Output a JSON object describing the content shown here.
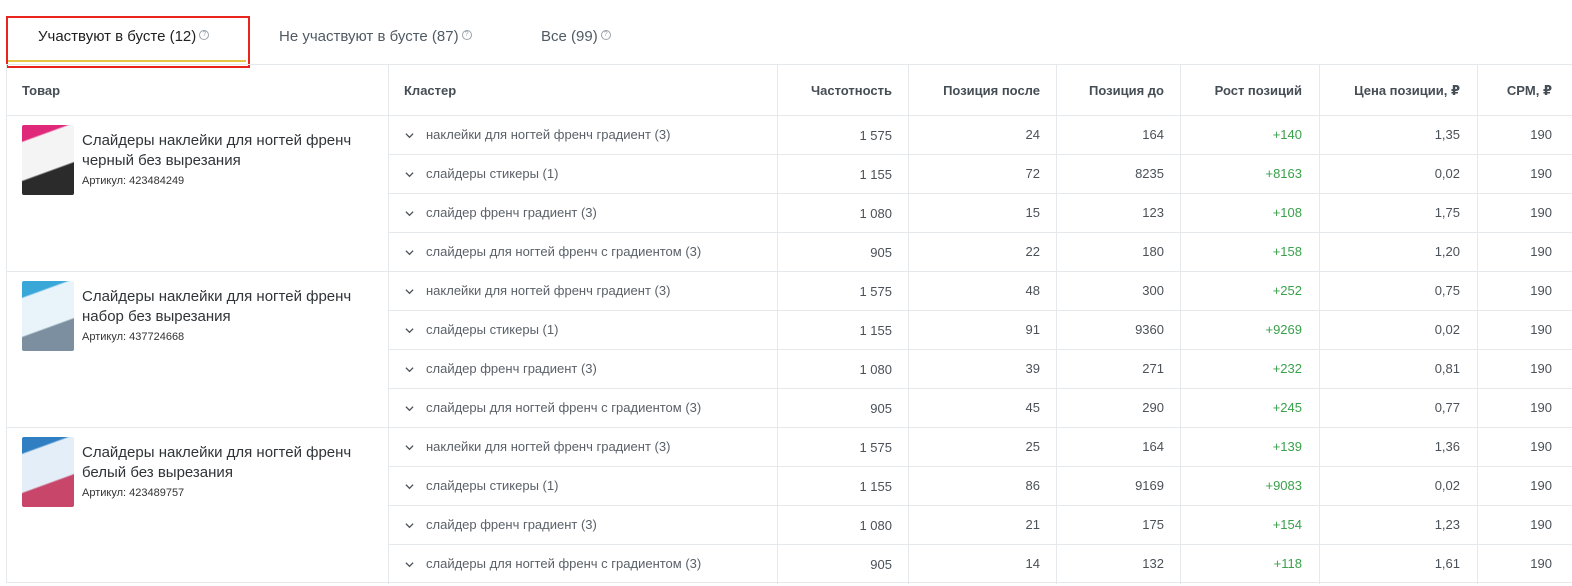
{
  "tabs": [
    {
      "label": "Участвуют в бусте (12)",
      "active": true
    },
    {
      "label": "Не участвуют в бусте (87)",
      "active": false
    },
    {
      "label": "Все (99)",
      "active": false
    }
  ],
  "help_glyph": "?",
  "columns": {
    "product": "Товар",
    "cluster": "Кластер",
    "frequency": "Частотность",
    "pos_after": "Позиция после",
    "pos_before": "Позиция до",
    "growth": "Рост позиций",
    "price": "Цена позиции, ₽",
    "cpm": "CPM, ₽"
  },
  "colors": {
    "accent_underline": "#e7c443",
    "highlight_box": "#e8241d",
    "growth_green": "#3aa14b"
  },
  "products": [
    {
      "title": "Слайдеры наклейки для ногтей френч черный без вырезания",
      "sku": "Артикул: 423484249",
      "rows": [
        {
          "cluster": "наклейки для ногтей френч градиент (3)",
          "frequency": "1 575",
          "pos_after": "24",
          "pos_before": "164",
          "growth": "+140",
          "price": "1,35",
          "cpm": "190"
        },
        {
          "cluster": "слайдеры стикеры (1)",
          "frequency": "1 155",
          "pos_after": "72",
          "pos_before": "8235",
          "growth": "+8163",
          "price": "0,02",
          "cpm": "190"
        },
        {
          "cluster": "слайдер френч градиент (3)",
          "frequency": "1 080",
          "pos_after": "15",
          "pos_before": "123",
          "growth": "+108",
          "price": "1,75",
          "cpm": "190"
        },
        {
          "cluster": "слайдеры для ногтей френч с градиентом (3)",
          "frequency": "905",
          "pos_after": "22",
          "pos_before": "180",
          "growth": "+158",
          "price": "1,20",
          "cpm": "190"
        }
      ]
    },
    {
      "title": "Слайдеры наклейки для ногтей френч набор без вырезания",
      "sku": "Артикул: 437724668",
      "rows": [
        {
          "cluster": "наклейки для ногтей френч градиент (3)",
          "frequency": "1 575",
          "pos_after": "48",
          "pos_before": "300",
          "growth": "+252",
          "price": "0,75",
          "cpm": "190"
        },
        {
          "cluster": "слайдеры стикеры (1)",
          "frequency": "1 155",
          "pos_after": "91",
          "pos_before": "9360",
          "growth": "+9269",
          "price": "0,02",
          "cpm": "190"
        },
        {
          "cluster": "слайдер френч градиент (3)",
          "frequency": "1 080",
          "pos_after": "39",
          "pos_before": "271",
          "growth": "+232",
          "price": "0,81",
          "cpm": "190"
        },
        {
          "cluster": "слайдеры для ногтей френч с градиентом (3)",
          "frequency": "905",
          "pos_after": "45",
          "pos_before": "290",
          "growth": "+245",
          "price": "0,77",
          "cpm": "190"
        }
      ]
    },
    {
      "title": "Слайдеры наклейки для ногтей френч белый без вырезания",
      "sku": "Артикул: 423489757",
      "rows": [
        {
          "cluster": "наклейки для ногтей френч градиент (3)",
          "frequency": "1 575",
          "pos_after": "25",
          "pos_before": "164",
          "growth": "+139",
          "price": "1,36",
          "cpm": "190"
        },
        {
          "cluster": "слайдеры стикеры (1)",
          "frequency": "1 155",
          "pos_after": "86",
          "pos_before": "9169",
          "growth": "+9083",
          "price": "0,02",
          "cpm": "190"
        },
        {
          "cluster": "слайдер френч градиент (3)",
          "frequency": "1 080",
          "pos_after": "21",
          "pos_before": "175",
          "growth": "+154",
          "price": "1,23",
          "cpm": "190"
        },
        {
          "cluster": "слайдеры для ногтей френч с градиентом (3)",
          "frequency": "905",
          "pos_after": "14",
          "pos_before": "132",
          "growth": "+118",
          "price": "1,61",
          "cpm": "190"
        }
      ]
    }
  ]
}
